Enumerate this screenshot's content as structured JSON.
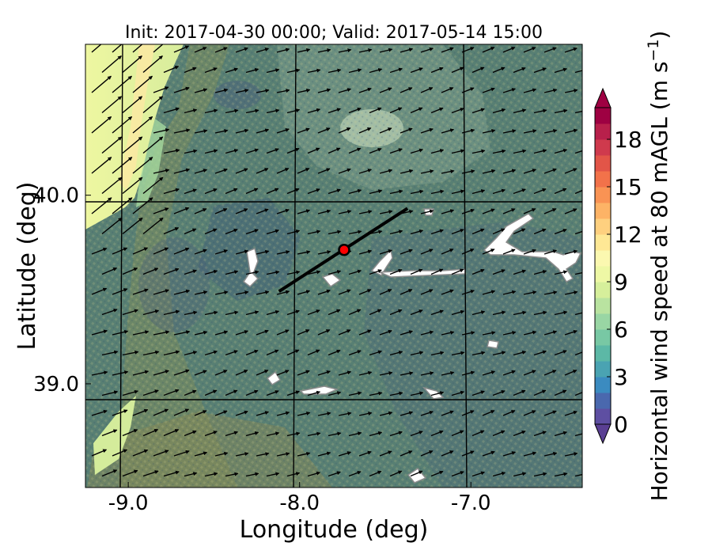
{
  "chart_data": {
    "type": "heatmap",
    "title": "Init: 2017-04-30 00:00; Valid: 2017-05-14 15:00",
    "xlabel": "Longitude (deg)",
    "ylabel": "Latitude (deg)",
    "xlim": [
      -9.25,
      -6.35
    ],
    "ylim": [
      38.45,
      40.8
    ],
    "xticks": [
      -9.0,
      -8.0,
      -7.0
    ],
    "xtick_labels": [
      "-9.0",
      "-8.0",
      "-7.0"
    ],
    "yticks": [
      39.0,
      40.0
    ],
    "ytick_labels": [
      "39.0",
      "40.0"
    ],
    "grid": true,
    "colorbar": {
      "label_main": "Horizontal wind speed at 80 mAGL (m s",
      "label_sup": "−1",
      "label_end": ")",
      "range": [
        0,
        20
      ],
      "step": 1,
      "ticks": [
        "0",
        "3",
        "6",
        "9",
        "12",
        "15",
        "18"
      ],
      "tick_values": [
        0,
        3,
        6,
        9,
        12,
        15,
        18
      ],
      "extend": "both",
      "colors": [
        "#5e4fa2",
        "#4a68ae",
        "#3b8bc0",
        "#4aa3b2",
        "#5cb8a6",
        "#78c8a4",
        "#99d6a4",
        "#b9e3a0",
        "#d6ef9b",
        "#eef8a5",
        "#fbf8b0",
        "#fee895",
        "#fed07f",
        "#fdb366",
        "#f99354",
        "#f2724a",
        "#e25548",
        "#cf3a4d",
        "#b8204b",
        "#9e0142"
      ]
    },
    "cross_section": {
      "start": [
        -8.12,
        39.49
      ],
      "end": [
        -7.37,
        39.93
      ]
    },
    "marker": {
      "lon": -7.74,
      "lat": 39.71,
      "color": "#ff0000"
    }
  }
}
